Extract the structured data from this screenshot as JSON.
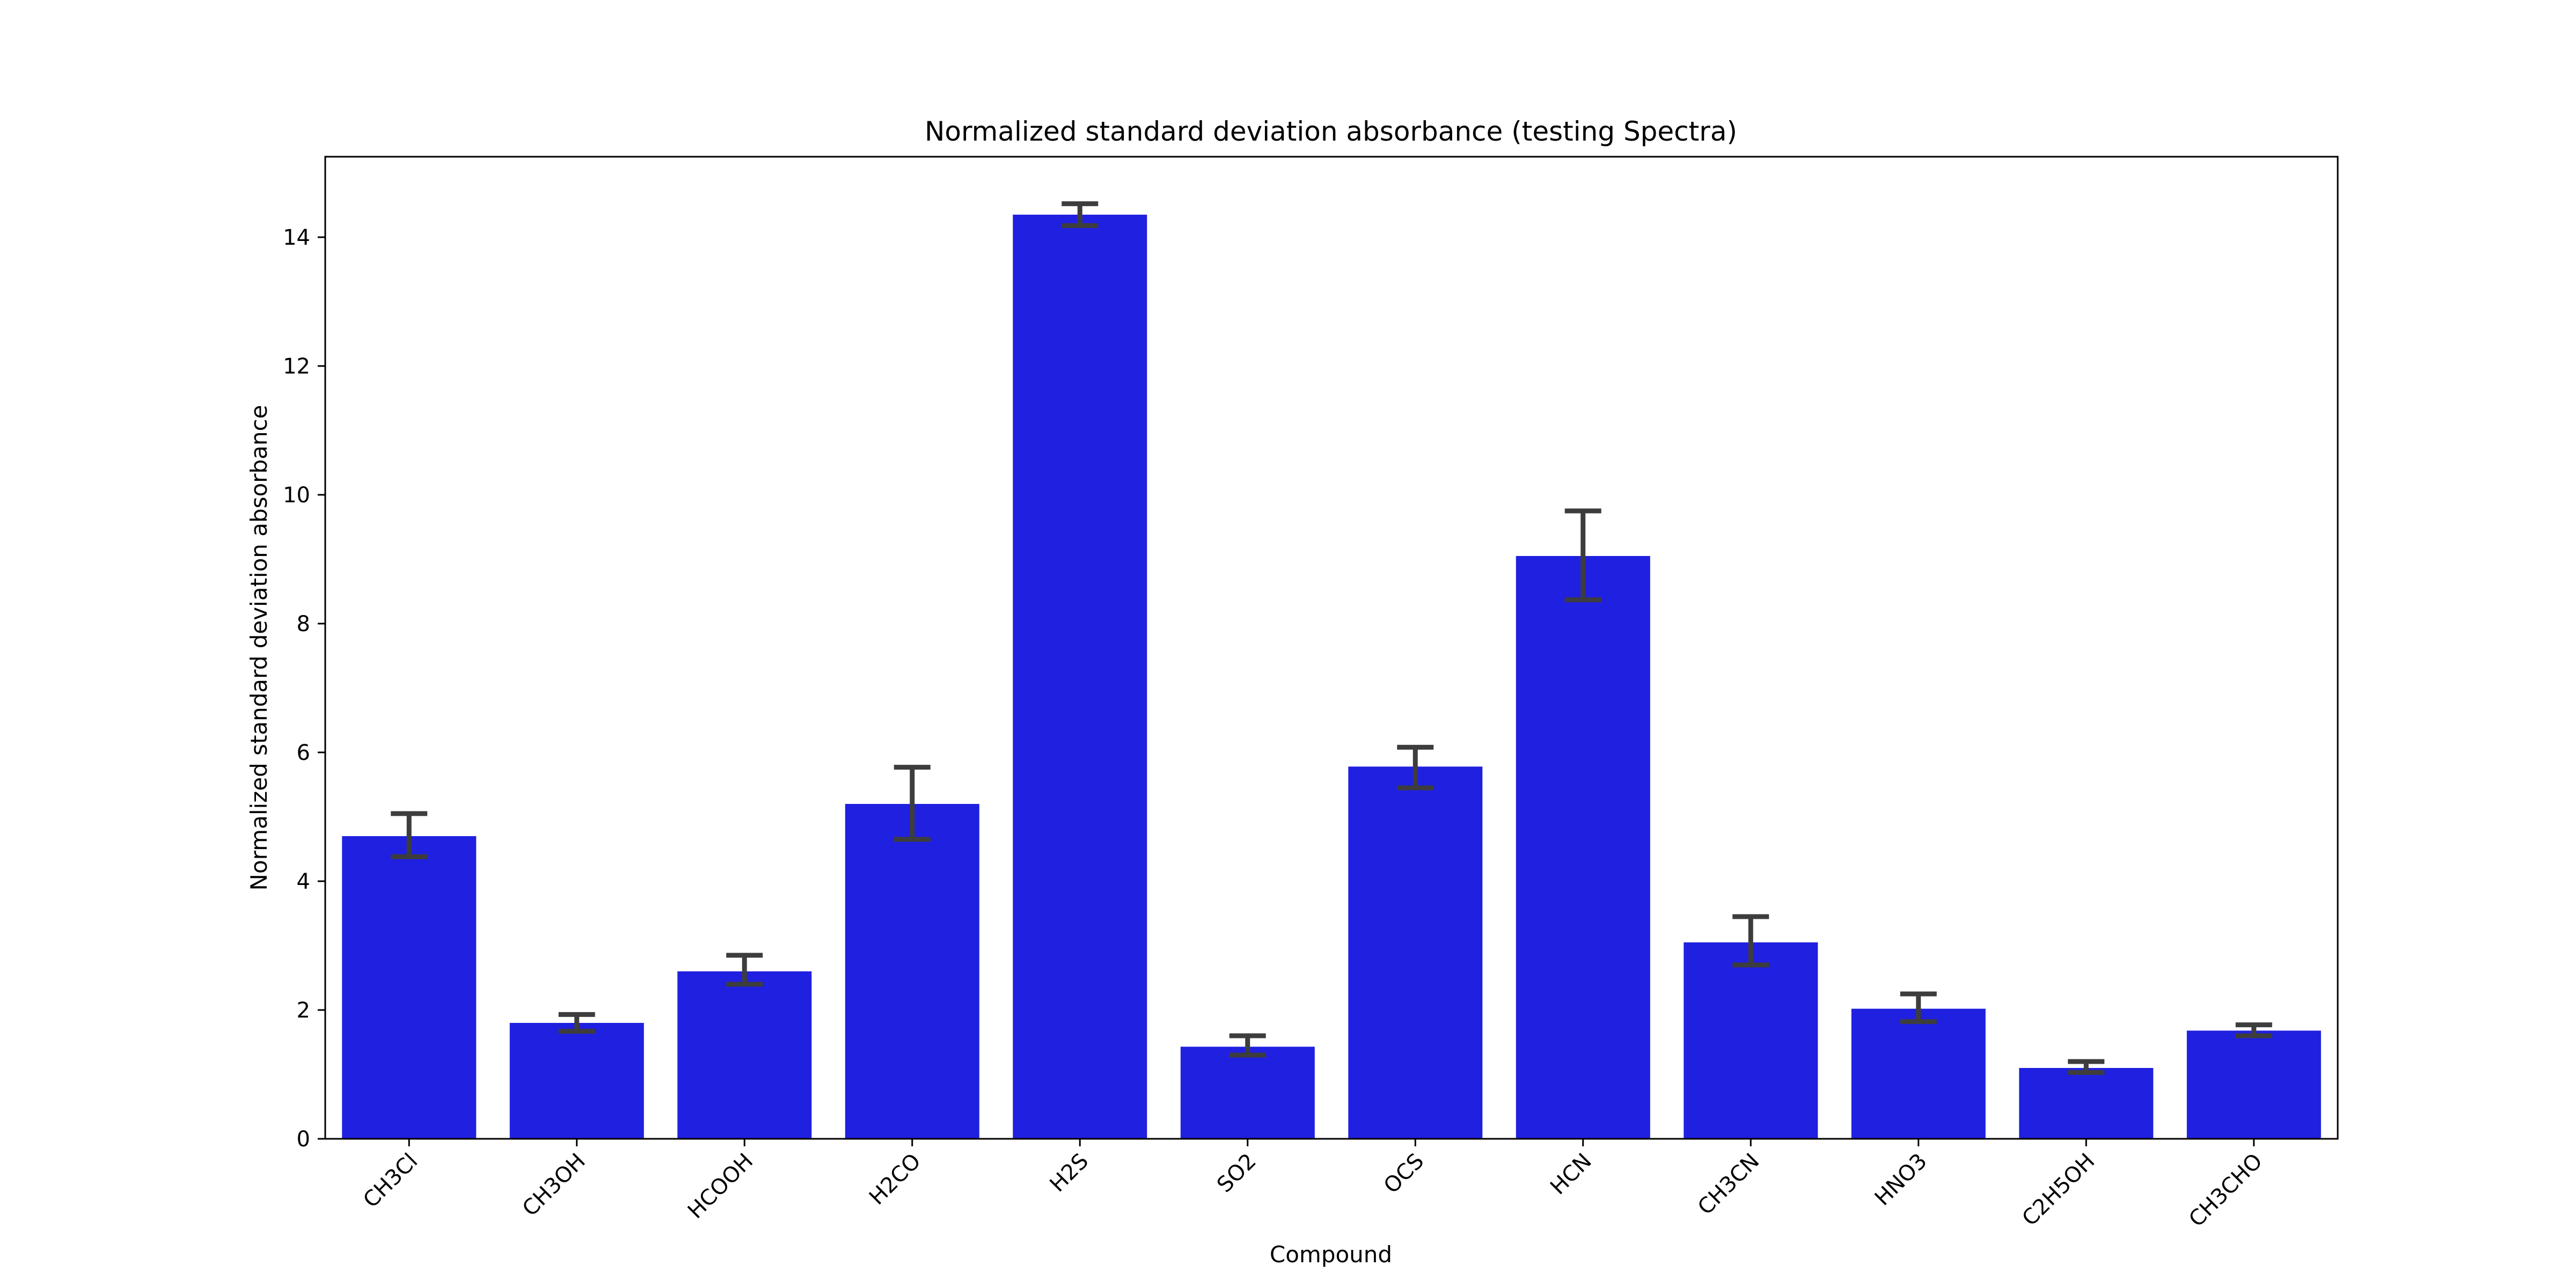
{
  "chart_data": {
    "type": "bar",
    "title": "Normalized standard deviation absorbance (testing Spectra)",
    "xlabel": "Compound",
    "ylabel": "Normalized standard deviation absorbance",
    "ylim": [
      0,
      15.25
    ],
    "yticks": [
      0,
      2,
      4,
      6,
      8,
      10,
      12,
      14
    ],
    "ytick_labels": [
      "0",
      "2",
      "4",
      "6",
      "8",
      "10",
      "12",
      "14"
    ],
    "categories": [
      "CH3Cl",
      "CH3OH",
      "HCOOH",
      "H2CO",
      "H2S",
      "SO2",
      "OCS",
      "HCN",
      "CH3CN",
      "HNO3",
      "C2H5OH",
      "CH3CHO"
    ],
    "values": [
      4.7,
      1.8,
      2.6,
      5.2,
      14.35,
      1.43,
      5.78,
      9.05,
      3.05,
      2.02,
      1.1,
      1.68
    ],
    "error_low": [
      4.38,
      1.67,
      2.4,
      4.65,
      14.18,
      1.3,
      5.45,
      8.37,
      2.7,
      1.82,
      1.03,
      1.6
    ],
    "error_high": [
      5.05,
      1.93,
      2.85,
      5.77,
      14.52,
      1.6,
      6.08,
      9.75,
      3.45,
      2.25,
      1.2,
      1.77
    ],
    "grid": false,
    "colors": {
      "bar": "#2020e0",
      "error_bar": "#3d3d3d",
      "axis": "#000000"
    }
  }
}
